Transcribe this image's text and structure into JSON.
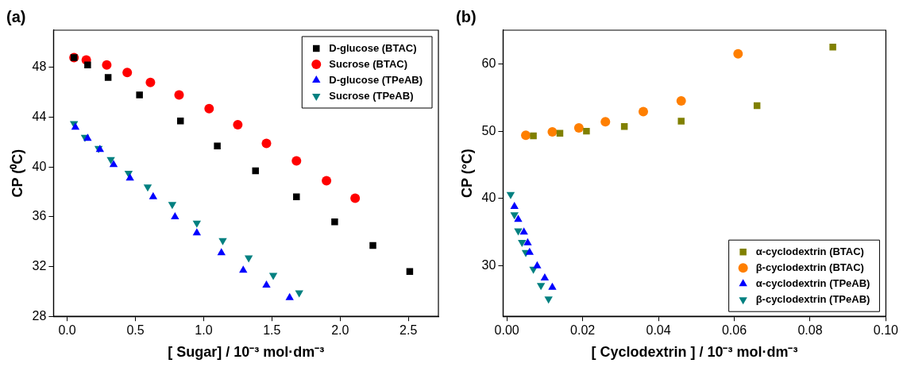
{
  "chart_data": [
    {
      "type": "scatter",
      "title": "(a)",
      "xlabel": "[ Sugar] / 10⁻³ mol·dm⁻³",
      "ylabel": "CP (⁰C)",
      "xlim": [
        -0.1,
        2.72
      ],
      "ylim": [
        28,
        51
      ],
      "xticks": [
        {
          "value": 0,
          "label": "0.0"
        },
        0.5,
        {
          "value": 1,
          "label": "1.0"
        },
        1.5,
        {
          "value": 2,
          "label": "2.0"
        },
        2.5
      ],
      "yticks": [
        28,
        32,
        36,
        40,
        44,
        48
      ],
      "legend": "top right",
      "grid": false,
      "series": [
        {
          "name": "D-glucose (BTAC)",
          "color": "#000000",
          "marker": "square",
          "x": [
            0.05,
            0.15,
            0.3,
            0.53,
            0.83,
            1.1,
            1.38,
            1.68,
            1.96,
            2.24,
            2.51
          ],
          "values": [
            48.8,
            48.2,
            47.2,
            45.8,
            43.7,
            41.7,
            39.7,
            37.6,
            35.6,
            33.7,
            31.6
          ]
        },
        {
          "name": "Sucrose (BTAC)",
          "color": "#ff0000",
          "marker": "circle",
          "x": [
            0.05,
            0.14,
            0.29,
            0.44,
            0.61,
            0.82,
            1.04,
            1.25,
            1.46,
            1.68,
            1.9,
            2.11
          ],
          "values": [
            48.8,
            48.6,
            48.2,
            47.6,
            46.8,
            45.8,
            44.7,
            43.4,
            41.9,
            40.5,
            38.9,
            37.5
          ]
        },
        {
          "name": "D-glucose (TPeAB)",
          "color": "#0000ff",
          "marker": "triangle",
          "x": [
            0.06,
            0.15,
            0.24,
            0.34,
            0.46,
            0.63,
            0.79,
            0.95,
            1.13,
            1.29,
            1.46,
            1.63
          ],
          "values": [
            43.2,
            42.3,
            41.4,
            40.2,
            39.1,
            37.6,
            36.0,
            34.7,
            33.1,
            31.7,
            30.5,
            29.5
          ]
        },
        {
          "name": "Sucrose (TPeAB)",
          "color": "#008080",
          "marker": "triangle-down",
          "x": [
            0.05,
            0.13,
            0.23,
            0.32,
            0.45,
            0.59,
            0.77,
            0.95,
            1.14,
            1.33,
            1.51,
            1.7
          ],
          "values": [
            43.5,
            42.4,
            41.5,
            40.6,
            39.5,
            38.4,
            37.0,
            35.5,
            34.1,
            32.7,
            31.3,
            29.9
          ]
        }
      ]
    },
    {
      "type": "scatter",
      "title": "(b)",
      "xlabel": "[ Cyclodextrin ] / 10⁻³ mol·dm⁻³",
      "ylabel": "CP (°C)",
      "xlim": [
        -0.001,
        0.1
      ],
      "ylim": [
        22.5,
        65
      ],
      "xticks": [
        {
          "value": 0,
          "label": "0.00"
        },
        0.02,
        0.04,
        0.06,
        0.08,
        {
          "value": 0.1,
          "label": "0.10"
        }
      ],
      "yticks": [
        30,
        40,
        50,
        60
      ],
      "legend": "bottom right",
      "grid": false,
      "series": [
        {
          "name": "α-cyclodextrin (BTAC)",
          "color": "#808000",
          "marker": "square",
          "x": [
            0.007,
            0.014,
            0.021,
            0.031,
            0.046,
            0.066,
            0.086
          ],
          "values": [
            49.3,
            49.7,
            50.0,
            50.7,
            51.5,
            53.8,
            62.5
          ]
        },
        {
          "name": "β-cyclodextrin (BTAC)",
          "color": "#ff7f00",
          "marker": "circle",
          "x": [
            0.005,
            0.012,
            0.019,
            0.026,
            0.036,
            0.046,
            0.061
          ],
          "values": [
            49.4,
            49.9,
            50.5,
            51.4,
            52.9,
            54.5,
            61.5
          ]
        },
        {
          "name": "α-cyclodextrin (TPeAB)",
          "color": "#0000ff",
          "marker": "triangle",
          "x": [
            0.002,
            0.003,
            0.0045,
            0.0055,
            0.006,
            0.008,
            0.01,
            0.012
          ],
          "values": [
            38.8,
            36.9,
            35.0,
            33.4,
            32.0,
            30.0,
            28.2,
            26.8
          ]
        },
        {
          "name": "β-cyclodextrin (TPeAB)",
          "color": "#008080",
          "marker": "triangle-down",
          "x": [
            0.001,
            0.002,
            0.003,
            0.004,
            0.005,
            0.007,
            0.009,
            0.011
          ],
          "values": [
            40.6,
            37.6,
            35.2,
            33.5,
            32.0,
            29.5,
            27.1,
            25.1
          ]
        }
      ]
    }
  ]
}
